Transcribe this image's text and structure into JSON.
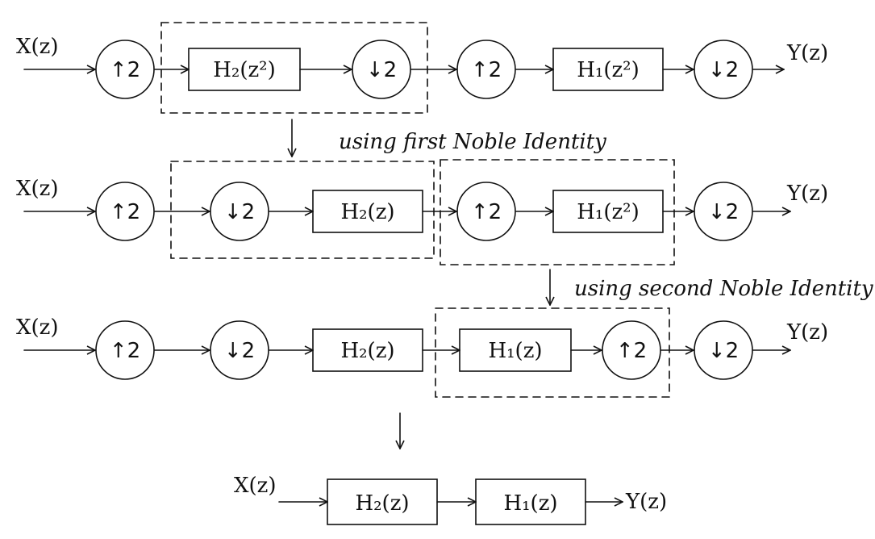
{
  "rows": [
    {
      "input": "X(z)",
      "output": "Y(z)",
      "blocks": {
        "up1": "↑2",
        "filter1": "H₂(z²)",
        "down1": "↓2",
        "up2": "↑2",
        "filter2": "H₁(z²)",
        "down2": "↓2"
      }
    },
    {
      "input": "X(z)",
      "output": "Y(z)",
      "blocks": {
        "up1": "↑2",
        "down1": "↓2",
        "filter1": "H₂(z)",
        "up2": "↑2",
        "filter2": "H₁(z²)",
        "down2": "↓2"
      }
    },
    {
      "input": "X(z)",
      "output": "Y(z)",
      "blocks": {
        "up1": "↑2",
        "down1": "↓2",
        "filter1": "H₂(z)",
        "filter2": "H₁(z)",
        "up2": "↑2",
        "down2": "↓2"
      }
    },
    {
      "input": "X(z)",
      "output": "Y(z)",
      "blocks": {
        "filter1": "H₂(z)",
        "filter2": "H₁(z)"
      }
    }
  ],
  "notes": {
    "step1": "using first Noble Identity",
    "step2": "using second Noble Identity"
  }
}
